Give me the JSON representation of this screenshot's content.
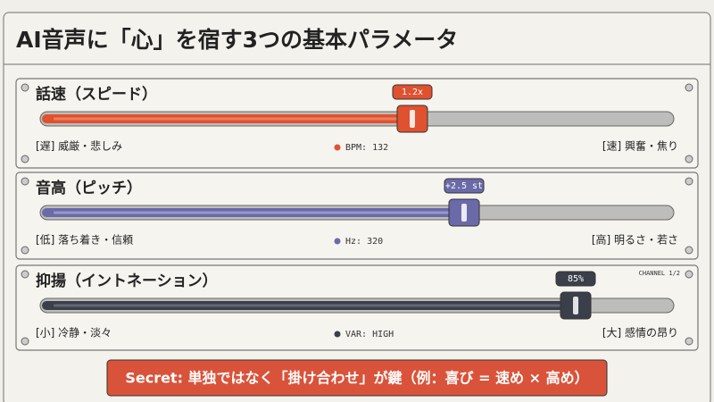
{
  "title": "AI音声に「心」を宿す3つの基本パラメータ",
  "panels": [
    {
      "label": "話速（スピード）",
      "value_label": "1.2x",
      "left": "[遅] 威厳・悲しみ",
      "center": "BPM: 132",
      "right": "[速] 興奮・焦り"
    },
    {
      "label": "音高（ピッチ）",
      "value_label": "+2.5 st",
      "left": "[低] 落ち着き・信頼",
      "center": "Hz: 320",
      "right": "[高] 明るさ・若さ"
    },
    {
      "label": "抑揚（イントネーション）",
      "value_label": "85%",
      "left": "[小] 冷静・淡々",
      "center": "VAR: HIGH",
      "right": "[大] 感情の昂り"
    }
  ],
  "channel": "CHANNEL 1/2",
  "secret": "Secret: 単独ではなく「掛け合わせ」が鍵（例：喜び = 速め × 高め）"
}
